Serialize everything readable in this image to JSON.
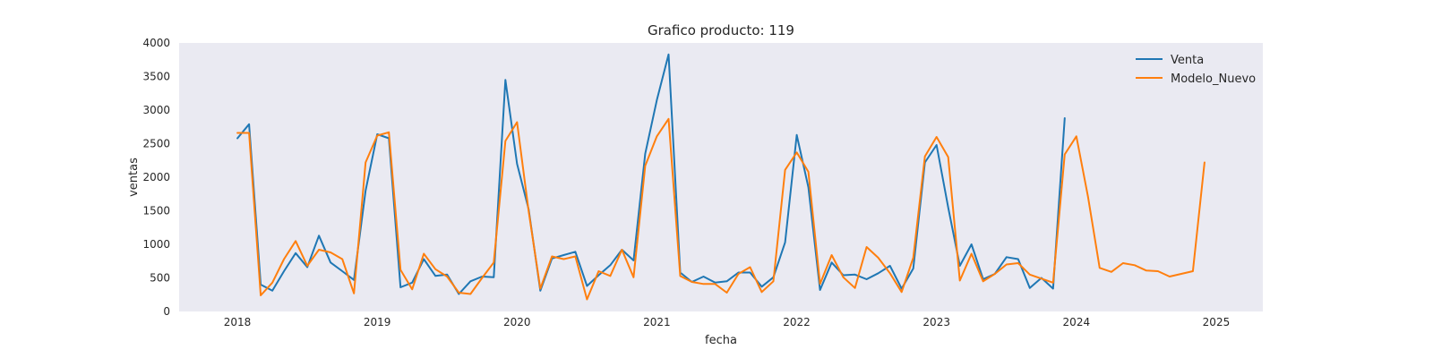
{
  "chart_data": {
    "type": "line",
    "title": "Grafico producto: 119",
    "xlabel": "fecha",
    "ylabel": "ventas",
    "x_start": "2018-01",
    "x_ticks": [
      "2018",
      "2019",
      "2020",
      "2021",
      "2022",
      "2023",
      "2024",
      "2025"
    ],
    "xlim": [
      "2017-08",
      "2025-05"
    ],
    "ylim": [
      0,
      4000
    ],
    "y_ticks": [
      0,
      500,
      1000,
      1500,
      2000,
      2500,
      3000,
      3500,
      4000
    ],
    "grid": false,
    "legend_position": "top-right",
    "series": [
      {
        "name": "Venta",
        "color": "#1f77b4",
        "values": [
          2580,
          2790,
          400,
          310,
          600,
          870,
          660,
          1130,
          730,
          600,
          470,
          1800,
          2640,
          2580,
          360,
          430,
          780,
          530,
          550,
          260,
          450,
          520,
          510,
          3450,
          2200,
          1520,
          310,
          790,
          840,
          890,
          380,
          540,
          690,
          920,
          760,
          2350,
          3150,
          3830,
          580,
          440,
          520,
          430,
          450,
          580,
          580,
          370,
          510,
          1030,
          2630,
          1850,
          320,
          730,
          540,
          550,
          480,
          570,
          680,
          340,
          640,
          2220,
          2480,
          1550,
          680,
          1000,
          480,
          560,
          810,
          780,
          350,
          500,
          340,
          2880
        ]
      },
      {
        "name": "Modelo_Nuevo",
        "color": "#ff7f0e",
        "values": [
          2660,
          2660,
          240,
          430,
          780,
          1050,
          680,
          920,
          880,
          780,
          270,
          2220,
          2620,
          2670,
          620,
          330,
          860,
          630,
          520,
          280,
          260,
          500,
          730,
          2540,
          2820,
          1490,
          340,
          820,
          780,
          820,
          180,
          600,
          530,
          920,
          510,
          2170,
          2610,
          2870,
          530,
          440,
          410,
          410,
          280,
          560,
          660,
          290,
          450,
          2110,
          2370,
          2080,
          410,
          840,
          510,
          350,
          960,
          800,
          570,
          290,
          800,
          2310,
          2600,
          2300,
          460,
          860,
          450,
          560,
          700,
          720,
          550,
          490,
          430,
          2340,
          2610,
          1710,
          650,
          590,
          720,
          690,
          610,
          600,
          520,
          560,
          600,
          2220
        ]
      }
    ]
  }
}
